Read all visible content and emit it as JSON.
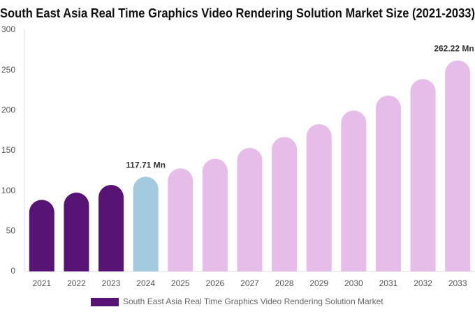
{
  "chart_data": {
    "type": "bar",
    "title": "South East Asia Real Time Graphics Video Rendering Solution Market Size (2021-2033)",
    "categories": [
      "2021",
      "2022",
      "2023",
      "2024",
      "2025",
      "2026",
      "2027",
      "2028",
      "2029",
      "2030",
      "2031",
      "2032",
      "2033"
    ],
    "series": [
      {
        "name": "South East Asia Real Time Graphics Video Rendering Solution Market",
        "color": "#581474",
        "values": [
          89,
          98,
          107.5,
          117.71,
          128,
          140,
          153.5,
          167,
          183,
          200,
          218.5,
          239,
          262.22
        ],
        "value_labels": [
          null,
          null,
          null,
          "117.71 Mn",
          null,
          null,
          null,
          null,
          null,
          null,
          null,
          null,
          "262.22 Mn"
        ],
        "colors": [
          "#581474",
          "#581474",
          "#581474",
          "#a4cadf",
          "#e6bce8",
          "#e6bce8",
          "#e6bce8",
          "#e6bce8",
          "#e6bce8",
          "#e6bce8",
          "#e6bce8",
          "#e6bce8",
          "#e6bce8"
        ]
      }
    ],
    "ylim": [
      0,
      300
    ],
    "yticks": [
      0,
      50,
      100,
      150,
      200,
      250,
      300
    ],
    "grid": false
  }
}
